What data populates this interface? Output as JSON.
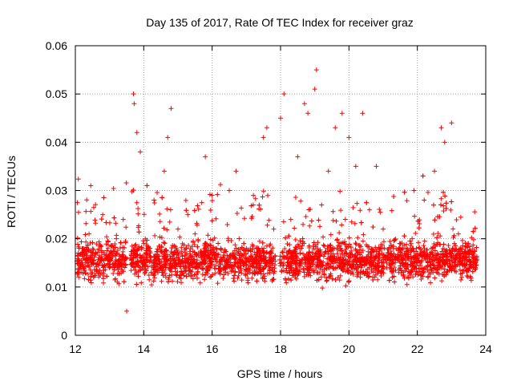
{
  "chart_data": {
    "type": "scatter",
    "title": "Day 135 of 2017, Rate Of TEC Index for receiver graz",
    "xlabel": "GPS time / hours",
    "ylabel": "ROTI / TECUs",
    "xlim": [
      12,
      24
    ],
    "ylim": [
      0,
      0.06
    ],
    "xticks": [
      "12",
      "14",
      "16",
      "18",
      "20",
      "22",
      "24"
    ],
    "yticks": [
      "0",
      "0.01",
      "0.02",
      "0.03",
      "0.04",
      "0.05",
      "0.06"
    ],
    "grid": true,
    "legend": "none",
    "marker": "plus",
    "color": "#ff0000",
    "series": [
      {
        "points": [
          [
            12.1,
            0.012
          ],
          [
            12.2,
            0.018
          ],
          [
            12.3,
            0.015
          ],
          [
            12.4,
            0.021
          ],
          [
            12.45,
            0.031
          ],
          [
            12.6,
            0.017
          ],
          [
            12.8,
            0.025
          ],
          [
            13.0,
            0.014
          ],
          [
            13.2,
            0.02
          ],
          [
            13.4,
            0.024
          ],
          [
            13.5,
            0.005
          ],
          [
            13.6,
            0.016
          ],
          [
            13.7,
            0.05
          ],
          [
            13.72,
            0.048
          ],
          [
            13.8,
            0.042
          ],
          [
            13.9,
            0.038
          ],
          [
            14.0,
            0.019
          ],
          [
            14.3,
            0.028
          ],
          [
            14.6,
            0.034
          ],
          [
            14.7,
            0.041
          ],
          [
            14.8,
            0.047
          ],
          [
            15.0,
            0.022
          ],
          [
            15.3,
            0.015
          ],
          [
            15.5,
            0.021
          ],
          [
            15.8,
            0.037
          ],
          [
            16.0,
            0.029
          ],
          [
            16.2,
            0.013
          ],
          [
            16.5,
            0.03
          ],
          [
            16.7,
            0.034
          ],
          [
            17.0,
            0.018
          ],
          [
            17.2,
            0.027
          ],
          [
            17.5,
            0.041
          ],
          [
            17.6,
            0.043
          ],
          [
            17.8,
            0.022
          ],
          [
            18.0,
            0.045
          ],
          [
            18.1,
            0.05
          ],
          [
            18.3,
            0.024
          ],
          [
            18.5,
            0.037
          ],
          [
            18.7,
            0.048
          ],
          [
            18.8,
            0.046
          ],
          [
            19.0,
            0.051
          ],
          [
            19.05,
            0.055
          ],
          [
            19.2,
            0.027
          ],
          [
            19.4,
            0.034
          ],
          [
            19.6,
            0.043
          ],
          [
            19.8,
            0.046
          ],
          [
            20.0,
            0.041
          ],
          [
            20.2,
            0.035
          ],
          [
            20.4,
            0.046
          ],
          [
            20.6,
            0.026
          ],
          [
            20.8,
            0.035
          ],
          [
            21.0,
            0.022
          ],
          [
            21.3,
            0.018
          ],
          [
            21.6,
            0.016
          ],
          [
            21.9,
            0.03
          ],
          [
            22.2,
            0.028
          ],
          [
            22.5,
            0.034
          ],
          [
            22.7,
            0.043
          ],
          [
            22.8,
            0.04
          ],
          [
            23.0,
            0.044
          ],
          [
            23.2,
            0.021
          ],
          [
            23.5,
            0.019
          ],
          [
            23.7,
            0.015
          ]
        ]
      }
    ]
  }
}
